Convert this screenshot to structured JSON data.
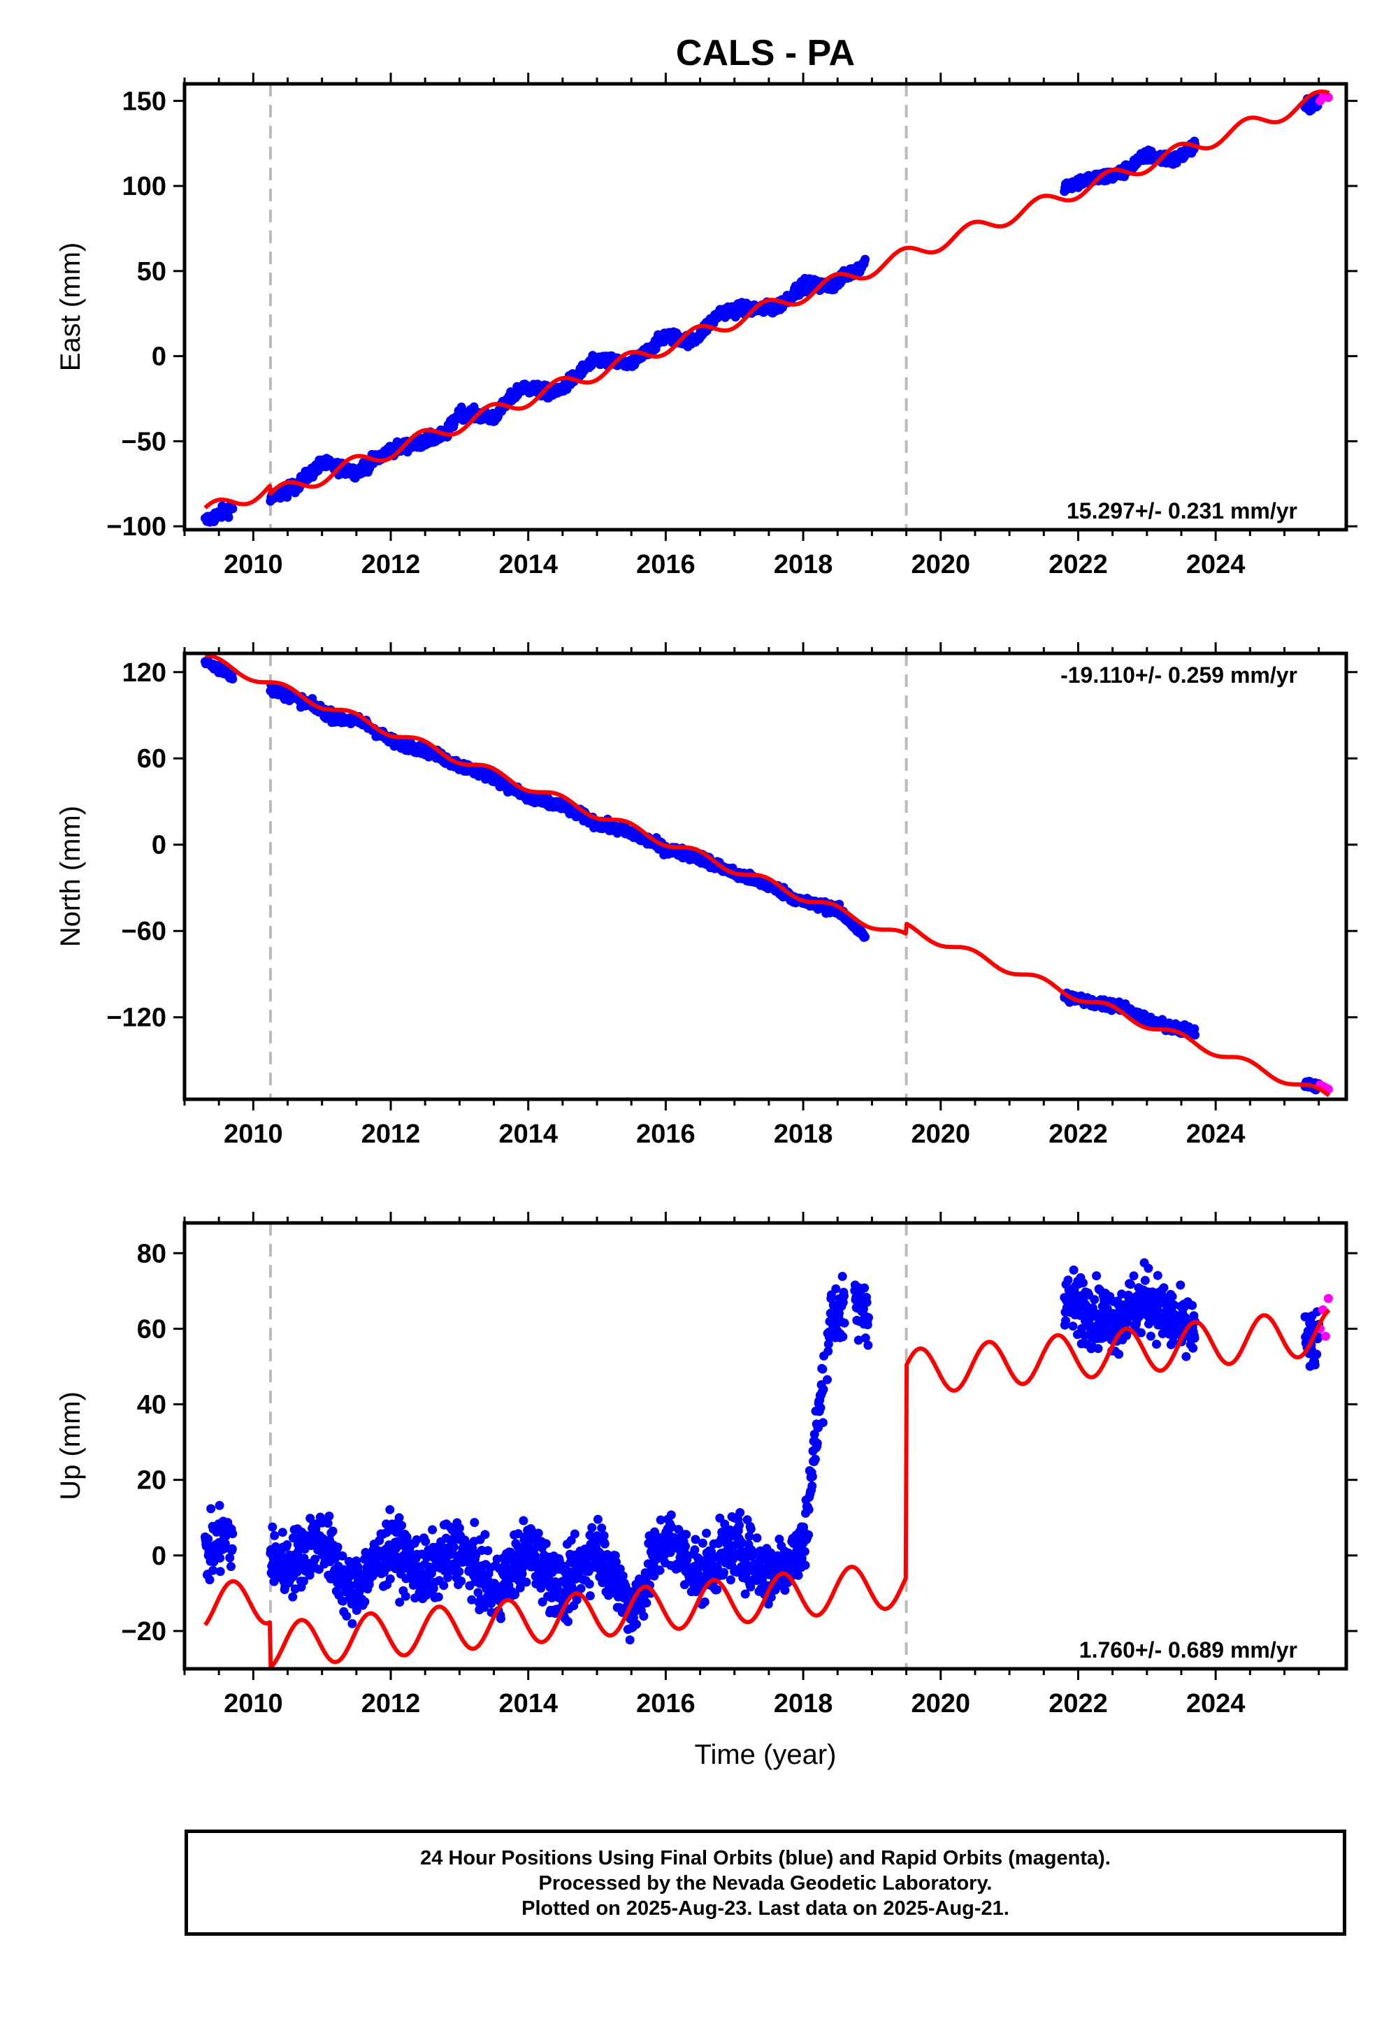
{
  "title": "CALS - PA",
  "footer": {
    "line1": "24 Hour Positions Using Final Orbits (blue) and Rapid Orbits (magenta).",
    "line2": "Processed by the Nevada Geodetic Laboratory.",
    "line3": "Plotted on 2025-Aug-23. Last data on 2025-Aug-21."
  },
  "colors": {
    "final_orbits": "#0000ff",
    "rapid_orbits": "#ff00ff",
    "model": "#ff0000",
    "event_lines": "#bbbbbb"
  },
  "chart_data": [
    {
      "type": "scatter",
      "panel": "east",
      "xlabel": "",
      "ylabel": "East (mm)",
      "xlim": [
        2009.0,
        2025.9
      ],
      "ylim": [
        -102,
        160
      ],
      "xticks": [
        2010,
        2012,
        2014,
        2016,
        2018,
        2020,
        2022,
        2024
      ],
      "yticks": [
        -100,
        -50,
        0,
        50,
        100,
        150
      ],
      "event_lines_x": [
        2010.25,
        2019.5
      ],
      "rate_label": "15.297+/- 0.231 mm/yr",
      "rate_position": "bottom-right",
      "series": [
        {
          "name": "Final Orbits",
          "color": "#0000ff",
          "segments": [
            [
              2009.3,
              2009.7
            ],
            [
              2010.25,
              2018.9
            ],
            [
              2021.8,
              2023.7
            ],
            [
              2025.3,
              2025.5
            ]
          ],
          "samples": [
            [
              2009.3,
              -97
            ],
            [
              2009.7,
              -89
            ],
            [
              2010.3,
              -83
            ],
            [
              2010.6,
              -77
            ],
            [
              2011.0,
              -63
            ],
            [
              2011.5,
              -68
            ],
            [
              2012.0,
              -55
            ],
            [
              2012.4,
              -51
            ],
            [
              2012.8,
              -46
            ],
            [
              2013.0,
              -33
            ],
            [
              2013.5,
              -36
            ],
            [
              2013.9,
              -18
            ],
            [
              2014.4,
              -22
            ],
            [
              2014.8,
              -8
            ],
            [
              2015.0,
              -2
            ],
            [
              2015.5,
              -5
            ],
            [
              2016.0,
              12
            ],
            [
              2016.4,
              9
            ],
            [
              2016.8,
              26
            ],
            [
              2017.2,
              28
            ],
            [
              2017.6,
              28
            ],
            [
              2018.0,
              42
            ],
            [
              2018.4,
              41
            ],
            [
              2018.9,
              55
            ],
            [
              2021.8,
              100
            ],
            [
              2022.2,
              104
            ],
            [
              2022.6,
              107
            ],
            [
              2023.0,
              118
            ],
            [
              2023.4,
              115
            ],
            [
              2023.7,
              123
            ],
            [
              2025.3,
              146
            ],
            [
              2025.5,
              150
            ]
          ]
        },
        {
          "name": "Rapid Orbits",
          "color": "#ff00ff",
          "samples": [
            [
              2025.52,
              150
            ],
            [
              2025.56,
              152
            ],
            [
              2025.6,
              153
            ],
            [
              2025.64,
              152
            ]
          ]
        },
        {
          "name": "Model",
          "color": "#ff0000",
          "trend_slope": 15.297,
          "trend_intercept_at_2017": 26,
          "offset_after": [
            [
              2010.25,
              -5
            ]
          ],
          "seasonal_amplitude": 4.5,
          "seasonal_phase": 0.2
        }
      ]
    },
    {
      "type": "scatter",
      "panel": "north",
      "xlabel": "",
      "ylabel": "North (mm)",
      "xlim": [
        2009.0,
        2025.9
      ],
      "ylim": [
        -177,
        133
      ],
      "xticks": [
        2010,
        2012,
        2014,
        2016,
        2018,
        2020,
        2022,
        2024
      ],
      "yticks": [
        -120,
        -60,
        0,
        60,
        120
      ],
      "event_lines_x": [
        2010.25,
        2019.5
      ],
      "rate_label": "-19.110+/- 0.259 mm/yr",
      "rate_position": "top-right",
      "series": [
        {
          "name": "Final Orbits",
          "color": "#0000ff",
          "segments": [
            [
              2009.3,
              2009.7
            ],
            [
              2010.25,
              2018.9
            ],
            [
              2021.8,
              2023.7
            ],
            [
              2025.3,
              2025.5
            ]
          ],
          "samples": [
            [
              2009.3,
              127
            ],
            [
              2009.7,
              118
            ],
            [
              2010.3,
              108
            ],
            [
              2010.8,
              98
            ],
            [
              2011.2,
              88
            ],
            [
              2011.6,
              85
            ],
            [
              2012.0,
              72
            ],
            [
              2012.5,
              66
            ],
            [
              2013.0,
              55
            ],
            [
              2013.5,
              47
            ],
            [
              2014.0,
              32
            ],
            [
              2014.5,
              27
            ],
            [
              2015.0,
              15
            ],
            [
              2015.5,
              8
            ],
            [
              2016.0,
              -3
            ],
            [
              2016.5,
              -9
            ],
            [
              2017.0,
              -20
            ],
            [
              2017.5,
              -28
            ],
            [
              2018.0,
              -40
            ],
            [
              2018.5,
              -45
            ],
            [
              2018.9,
              -64
            ],
            [
              2021.8,
              -105
            ],
            [
              2022.2,
              -110
            ],
            [
              2022.6,
              -112
            ],
            [
              2023.0,
              -122
            ],
            [
              2023.4,
              -128
            ],
            [
              2023.7,
              -130
            ],
            [
              2025.3,
              -165
            ],
            [
              2025.5,
              -168
            ]
          ]
        },
        {
          "name": "Rapid Orbits",
          "color": "#ff00ff",
          "samples": [
            [
              2025.52,
              -167
            ],
            [
              2025.56,
              -168
            ],
            [
              2025.6,
              -169
            ],
            [
              2025.64,
              -170
            ]
          ]
        },
        {
          "name": "Model",
          "color": "#ff0000",
          "trend_slope": -19.11,
          "trend_intercept_at_2017": -17,
          "offset_after": [
            [
              2019.5,
              7
            ]
          ],
          "seasonal_amplitude": 3,
          "seasonal_phase": 0.2
        }
      ]
    },
    {
      "type": "scatter",
      "panel": "up",
      "xlabel": "Time (year)",
      "ylabel": "Up (mm)",
      "xlim": [
        2009.0,
        2025.9
      ],
      "ylim": [
        -30,
        88
      ],
      "xticks": [
        2010,
        2012,
        2014,
        2016,
        2018,
        2020,
        2022,
        2024
      ],
      "yticks": [
        -20,
        0,
        20,
        40,
        60,
        80
      ],
      "event_lines_x": [
        2010.25,
        2019.5
      ],
      "rate_label": "1.760+/- 0.689 mm/yr",
      "rate_position": "bottom-right",
      "series": [
        {
          "name": "Final Orbits",
          "color": "#0000ff",
          "segments": [
            [
              2009.3,
              2009.7
            ],
            [
              2010.25,
              2018.3
            ],
            [
              2018.35,
              2018.6
            ],
            [
              2018.75,
              2018.95
            ],
            [
              2021.8,
              2023.7
            ],
            [
              2025.3,
              2025.5
            ]
          ],
          "samples": [
            [
              2009.3,
              0
            ],
            [
              2009.6,
              5
            ],
            [
              2010.5,
              -3
            ],
            [
              2011.0,
              5
            ],
            [
              2011.4,
              -10
            ],
            [
              2012.0,
              2
            ],
            [
              2012.5,
              -5
            ],
            [
              2013.0,
              2
            ],
            [
              2013.5,
              -10
            ],
            [
              2014.0,
              2
            ],
            [
              2014.5,
              -10
            ],
            [
              2015.0,
              3
            ],
            [
              2015.5,
              -15
            ],
            [
              2016.0,
              5
            ],
            [
              2016.5,
              -5
            ],
            [
              2017.0,
              3
            ],
            [
              2017.5,
              -5
            ],
            [
              2018.0,
              2
            ],
            [
              2018.4,
              64
            ],
            [
              2018.8,
              65
            ],
            [
              2021.9,
              67
            ],
            [
              2022.5,
              62
            ],
            [
              2023.0,
              68
            ],
            [
              2023.5,
              60
            ],
            [
              2025.4,
              56
            ]
          ]
        },
        {
          "name": "Rapid Orbits",
          "color": "#ff00ff",
          "samples": [
            [
              2025.52,
              60
            ],
            [
              2025.56,
              65
            ],
            [
              2025.6,
              58
            ],
            [
              2025.64,
              68
            ]
          ]
        },
        {
          "name": "Model",
          "color": "#ff0000",
          "trend_slope": 1.76,
          "trend_intercept_at_2017": 0,
          "offset_after": [
            [
              2010.25,
              -12
            ],
            [
              2019.5,
              56
            ]
          ],
          "seasonal_amplitude": 6,
          "seasonal_phase": 0.45
        }
      ]
    }
  ]
}
